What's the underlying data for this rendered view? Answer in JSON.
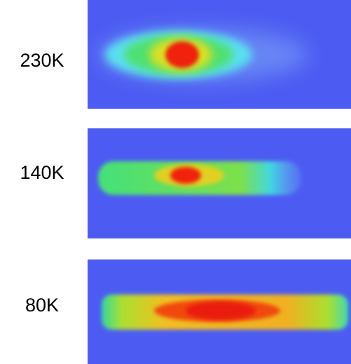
{
  "panels": [
    {
      "label": "230K"
    },
    {
      "label": "140K"
    },
    {
      "label": "80K"
    }
  ]
}
